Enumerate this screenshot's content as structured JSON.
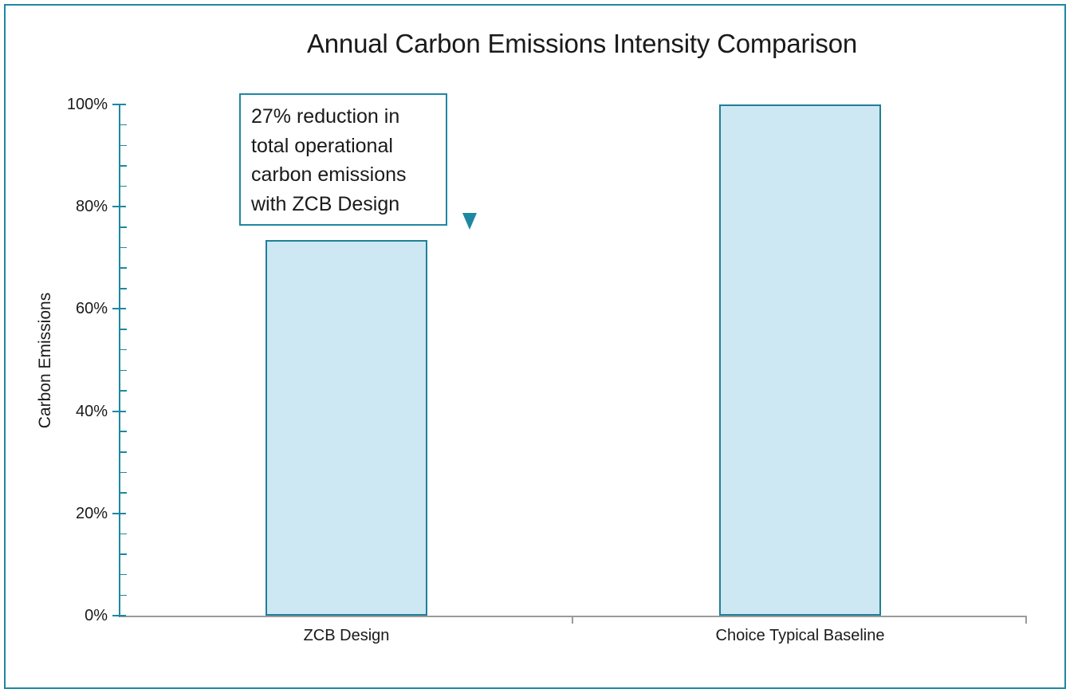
{
  "chart_data": {
    "type": "bar",
    "title": "Annual Carbon Emissions Intensity Comparison",
    "categories": [
      "ZCB Design",
      "Choice Typical Baseline"
    ],
    "values": [
      73.5,
      100
    ],
    "xlabel": "",
    "ylabel": "Carbon Emissions",
    "ylim": [
      0,
      100
    ],
    "ytick_values": [
      0,
      20,
      40,
      60,
      80,
      100
    ],
    "ytick_labels": [
      "0%",
      "20%",
      "40%",
      "60%",
      "80%",
      "100%"
    ],
    "minor_tick_step": 4,
    "grid": false,
    "legend": false,
    "annotation": "27% reduction in total operational carbon emissions with ZCB Design"
  },
  "annotation": {
    "lines": [
      "27% reduction in",
      "total operational",
      "carbon emissions",
      "with ZCB Design"
    ]
  },
  "colors": {
    "accent_teal": "#1e87a2",
    "bar_fill": "#cde7f3",
    "bar_border": "#1f7f98",
    "x_axis_gray": "#9b9b9b",
    "text": "#1a1a1a"
  }
}
